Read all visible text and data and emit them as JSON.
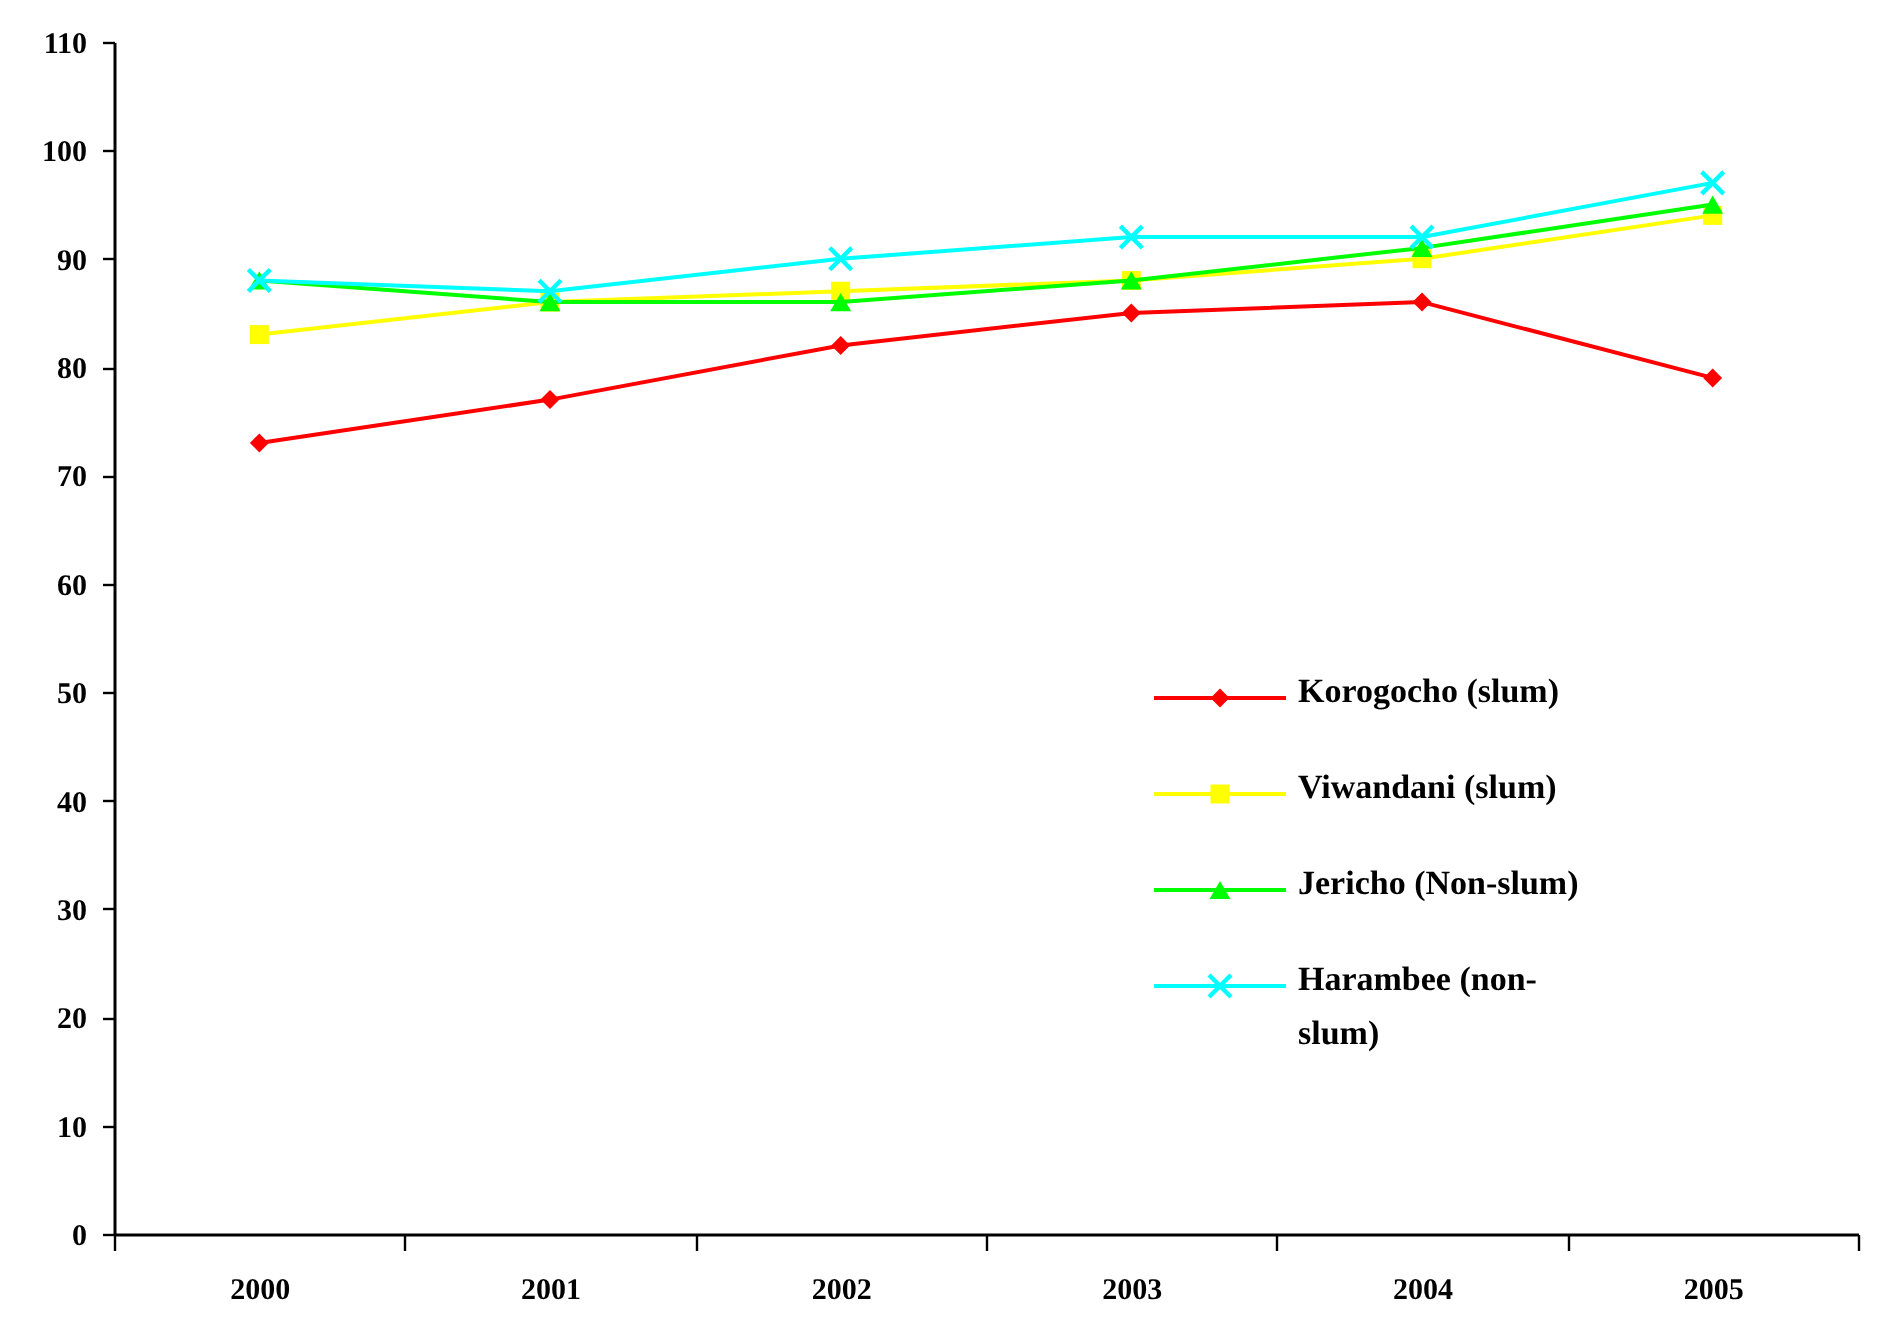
{
  "chart_data": {
    "type": "line",
    "categories": [
      "2000",
      "2001",
      "2002",
      "2003",
      "2004",
      "2005"
    ],
    "ylim": [
      0,
      110
    ],
    "yticks": [
      0,
      10,
      20,
      30,
      40,
      50,
      60,
      70,
      80,
      90,
      100,
      110
    ],
    "legend": "bottom right",
    "series": [
      {
        "name": "Korogocho (slum)",
        "color": "#ff0000",
        "marker": "diamond",
        "values": [
          73,
          77,
          82,
          85,
          86,
          79
        ]
      },
      {
        "name": "Viwandani (slum)",
        "color": "#ffff00",
        "marker": "square",
        "values": [
          83,
          86,
          87,
          88,
          90,
          94
        ]
      },
      {
        "name": "Jericho (Non-slum)",
        "color": "#00ff00",
        "marker": "triangle",
        "values": [
          88,
          86,
          86,
          88,
          91,
          95
        ]
      },
      {
        "name": "Harambee (non-slum)",
        "color": "#00ffff",
        "marker": "cross",
        "values": [
          88,
          87,
          90,
          92,
          92,
          97
        ]
      }
    ]
  }
}
